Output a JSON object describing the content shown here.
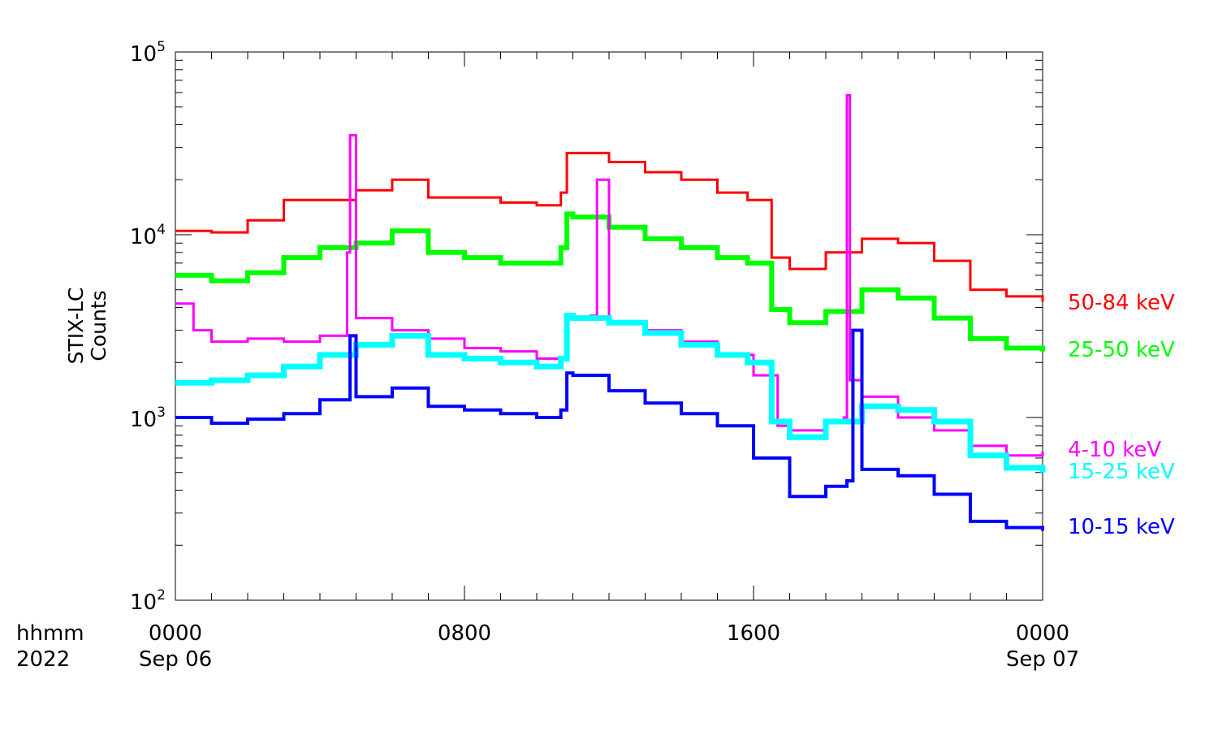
{
  "chart_data": {
    "type": "line",
    "ylabel_line1": "STIX-LC",
    "ylabel_line2": "Counts",
    "yscale": "log",
    "ylim": [
      100,
      100000
    ],
    "ytick_labels": [
      {
        "base": "10",
        "exp": "2",
        "value": 100
      },
      {
        "base": "10",
        "exp": "3",
        "value": 1000
      },
      {
        "base": "10",
        "exp": "4",
        "value": 10000
      },
      {
        "base": "10",
        "exp": "5",
        "value": 100000
      }
    ],
    "xlim": [
      "2022-09-06 00:00",
      "2022-09-07 00:00"
    ],
    "x_corner_labels": {
      "line1": "hhmm",
      "line2": "2022"
    },
    "xtick_labels": [
      {
        "time": "2022-09-06 00:00",
        "line1": "0000",
        "line2": "Sep 06"
      },
      {
        "time": "2022-09-06 08:00",
        "line1": "0800",
        "line2": ""
      },
      {
        "time": "2022-09-06 16:00",
        "line1": "1600",
        "line2": ""
      },
      {
        "time": "2022-09-07 00:00",
        "line1": "0000",
        "line2": "Sep 07"
      }
    ],
    "legend_placement": "right",
    "series": [
      {
        "name": "50-84 keV",
        "color": "#ff0000",
        "x": [
          "2022-09-06 00:00",
          "2022-09-06 01:00",
          "2022-09-06 02:00",
          "2022-09-06 03:00",
          "2022-09-06 04:00",
          "2022-09-06 05:00",
          "2022-09-06 06:00",
          "2022-09-06 07:00",
          "2022-09-06 08:00",
          "2022-09-06 09:00",
          "2022-09-06 10:00",
          "2022-09-06 10:40",
          "2022-09-06 10:50",
          "2022-09-06 11:00",
          "2022-09-06 12:00",
          "2022-09-06 13:00",
          "2022-09-06 14:00",
          "2022-09-06 15:00",
          "2022-09-06 15:50",
          "2022-09-06 16:30",
          "2022-09-06 17:00",
          "2022-09-06 18:00",
          "2022-09-06 19:00",
          "2022-09-06 20:00",
          "2022-09-06 21:00",
          "2022-09-06 22:00",
          "2022-09-06 23:00",
          "2022-09-07 00:00"
        ],
        "y": [
          10500,
          10300,
          12000,
          15500,
          15500,
          17500,
          20000,
          16000,
          16000,
          15000,
          14500,
          17000,
          28000,
          28000,
          25000,
          22000,
          20000,
          17000,
          15500,
          7500,
          6500,
          8000,
          9500,
          9000,
          7200,
          5000,
          4600,
          4300
        ]
      },
      {
        "name": "25-50 keV",
        "color": "#00ff00",
        "x": [
          "2022-09-06 00:00",
          "2022-09-06 01:00",
          "2022-09-06 02:00",
          "2022-09-06 03:00",
          "2022-09-06 04:00",
          "2022-09-06 05:00",
          "2022-09-06 06:00",
          "2022-09-06 07:00",
          "2022-09-06 08:00",
          "2022-09-06 09:00",
          "2022-09-06 10:00",
          "2022-09-06 10:40",
          "2022-09-06 10:50",
          "2022-09-06 11:00",
          "2022-09-06 12:00",
          "2022-09-06 13:00",
          "2022-09-06 14:00",
          "2022-09-06 15:00",
          "2022-09-06 15:50",
          "2022-09-06 16:30",
          "2022-09-06 17:00",
          "2022-09-06 18:00",
          "2022-09-06 19:00",
          "2022-09-06 20:00",
          "2022-09-06 21:00",
          "2022-09-06 22:00",
          "2022-09-06 23:00",
          "2022-09-07 00:00"
        ],
        "y": [
          6000,
          5600,
          6200,
          7500,
          8500,
          9000,
          10500,
          8000,
          7500,
          7000,
          7000,
          8500,
          13000,
          12500,
          11000,
          9500,
          8500,
          7500,
          7000,
          3900,
          3300,
          3800,
          5000,
          4500,
          3500,
          2700,
          2400,
          2300
        ]
      },
      {
        "name": "4-10 keV",
        "color": "#ff00ff",
        "x": [
          "2022-09-06 00:00",
          "2022-09-06 00:30",
          "2022-09-06 01:00",
          "2022-09-06 02:00",
          "2022-09-06 03:00",
          "2022-09-06 04:00",
          "2022-09-06 04:45",
          "2022-09-06 04:50",
          "2022-09-06 05:00",
          "2022-09-06 06:00",
          "2022-09-06 07:00",
          "2022-09-06 08:00",
          "2022-09-06 09:00",
          "2022-09-06 10:00",
          "2022-09-06 10:50",
          "2022-09-06 11:30",
          "2022-09-06 11:40",
          "2022-09-06 12:00",
          "2022-09-06 13:00",
          "2022-09-06 14:00",
          "2022-09-06 15:00",
          "2022-09-06 16:00",
          "2022-09-06 16:40",
          "2022-09-06 17:00",
          "2022-09-06 18:00",
          "2022-09-06 18:30",
          "2022-09-06 18:35",
          "2022-09-06 18:40",
          "2022-09-06 19:00",
          "2022-09-06 20:00",
          "2022-09-06 21:00",
          "2022-09-06 22:00",
          "2022-09-06 23:00",
          "2022-09-07 00:00"
        ],
        "y": [
          4200,
          3000,
          2600,
          2700,
          2600,
          2800,
          8000,
          35000,
          3500,
          3000,
          2700,
          2400,
          2300,
          2100,
          3500,
          3600,
          20000,
          3300,
          3000,
          2600,
          2200,
          1700,
          900,
          850,
          950,
          1000,
          58000,
          1600,
          1300,
          1000,
          850,
          700,
          620,
          650
        ]
      },
      {
        "name": "15-25 keV",
        "color": "#00ffff",
        "x": [
          "2022-09-06 00:00",
          "2022-09-06 01:00",
          "2022-09-06 02:00",
          "2022-09-06 03:00",
          "2022-09-06 04:00",
          "2022-09-06 05:00",
          "2022-09-06 06:00",
          "2022-09-06 07:00",
          "2022-09-06 08:00",
          "2022-09-06 09:00",
          "2022-09-06 10:00",
          "2022-09-06 10:40",
          "2022-09-06 10:50",
          "2022-09-06 11:00",
          "2022-09-06 12:00",
          "2022-09-06 13:00",
          "2022-09-06 14:00",
          "2022-09-06 15:00",
          "2022-09-06 15:50",
          "2022-09-06 16:30",
          "2022-09-06 17:00",
          "2022-09-06 18:00",
          "2022-09-06 19:00",
          "2022-09-06 20:00",
          "2022-09-06 21:00",
          "2022-09-06 22:00",
          "2022-09-06 23:00",
          "2022-09-07 00:00"
        ],
        "y": [
          1550,
          1600,
          1700,
          1900,
          2200,
          2500,
          2800,
          2200,
          2100,
          2000,
          1900,
          2100,
          3600,
          3500,
          3300,
          2900,
          2500,
          2200,
          2000,
          950,
          780,
          950,
          1150,
          1100,
          950,
          620,
          530,
          500
        ]
      },
      {
        "name": "10-15 keV",
        "color": "#0000ff",
        "x": [
          "2022-09-06 00:00",
          "2022-09-06 01:00",
          "2022-09-06 02:00",
          "2022-09-06 03:00",
          "2022-09-06 04:00",
          "2022-09-06 04:50",
          "2022-09-06 05:00",
          "2022-09-06 06:00",
          "2022-09-06 07:00",
          "2022-09-06 08:00",
          "2022-09-06 09:00",
          "2022-09-06 10:00",
          "2022-09-06 10:40",
          "2022-09-06 10:50",
          "2022-09-06 11:00",
          "2022-09-06 12:00",
          "2022-09-06 13:00",
          "2022-09-06 14:00",
          "2022-09-06 15:00",
          "2022-09-06 16:00",
          "2022-09-06 17:00",
          "2022-09-06 18:00",
          "2022-09-06 18:35",
          "2022-09-06 18:45",
          "2022-09-06 19:00",
          "2022-09-06 20:00",
          "2022-09-06 21:00",
          "2022-09-06 22:00",
          "2022-09-06 23:00",
          "2022-09-07 00:00"
        ],
        "y": [
          1000,
          930,
          980,
          1050,
          1250,
          2800,
          1300,
          1450,
          1150,
          1100,
          1050,
          1000,
          1100,
          1750,
          1700,
          1400,
          1200,
          1050,
          900,
          600,
          370,
          420,
          450,
          3000,
          520,
          480,
          380,
          270,
          250,
          240
        ]
      }
    ]
  }
}
